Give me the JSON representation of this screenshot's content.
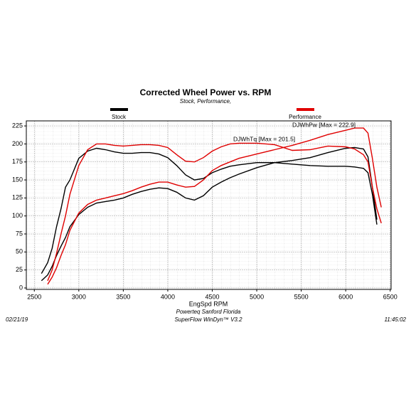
{
  "chart_data": {
    "type": "line",
    "title": "Corrected Wheel Power vs. RPM",
    "subtitle": "Stock, Performance,",
    "x_label": "EngSpd RPM",
    "footer": {
      "date": "02/21/19",
      "location": "Powerteq Sanford Florida",
      "software": "SuperFlow WinDyn™ V3.2",
      "time": "11:45:02"
    },
    "annotations": [
      {
        "text": "DJWhTq [Max = 201.5]",
        "color": "#e00000"
      },
      {
        "text": "DJWhPw [Max = 222.9]",
        "color": "#e00000"
      }
    ],
    "x": [
      2580,
      2650,
      2700,
      2750,
      2800,
      2850,
      2900,
      3000,
      3100,
      3200,
      3300,
      3400,
      3500,
      3600,
      3700,
      3800,
      3900,
      4000,
      4100,
      4200,
      4300,
      4400,
      4500,
      4600,
      4700,
      4800,
      5000,
      5200,
      5400,
      5600,
      5800,
      6000,
      6100,
      6200,
      6250,
      6300,
      6350,
      6400
    ],
    "series": [
      {
        "name": "Stock",
        "color": "#000000",
        "torque": [
          20,
          35,
          55,
          85,
          110,
          140,
          150,
          180,
          190,
          194,
          192,
          189,
          187,
          187,
          188,
          188,
          186,
          181,
          170,
          157,
          150,
          152,
          160,
          165,
          169,
          171,
          174,
          174,
          172,
          170,
          169,
          169,
          168,
          166,
          160,
          130,
          88,
          null
        ],
        "power": [
          10,
          18,
          30,
          45,
          58,
          70,
          85,
          102,
          112,
          118,
          120,
          122,
          125,
          130,
          134,
          137,
          139,
          138,
          133,
          125,
          122,
          128,
          140,
          147,
          153,
          158,
          167,
          174,
          177,
          181,
          188,
          194,
          195,
          193,
          182,
          140,
          95,
          null
        ]
      },
      {
        "name": "Performance",
        "color": "#e00000",
        "torque": [
          null,
          10,
          25,
          48,
          75,
          100,
          130,
          170,
          192,
          200,
          200,
          198,
          197,
          198,
          199,
          199,
          198,
          195,
          185,
          176,
          175,
          181,
          190,
          196,
          200,
          201,
          201,
          199,
          191,
          192,
          197,
          196,
          193,
          185,
          175,
          140,
          110,
          90
        ],
        "power": [
          null,
          5,
          15,
          28,
          45,
          60,
          80,
          104,
          116,
          122,
          125,
          128,
          131,
          135,
          140,
          144,
          147,
          147,
          143,
          140,
          141,
          150,
          163,
          170,
          175,
          180,
          186,
          192,
          198,
          205,
          213,
          219,
          222,
          222,
          215,
          180,
          140,
          112
        ]
      }
    ],
    "xlim": [
      2410,
      6510
    ],
    "xticks": [
      2500,
      3000,
      3500,
      4000,
      4500,
      5000,
      5500,
      6000,
      6500
    ],
    "ylim": [
      -2,
      232
    ],
    "yticks": [
      0,
      25,
      50,
      75,
      100,
      125,
      150,
      175,
      200,
      225
    ],
    "grid": true
  }
}
